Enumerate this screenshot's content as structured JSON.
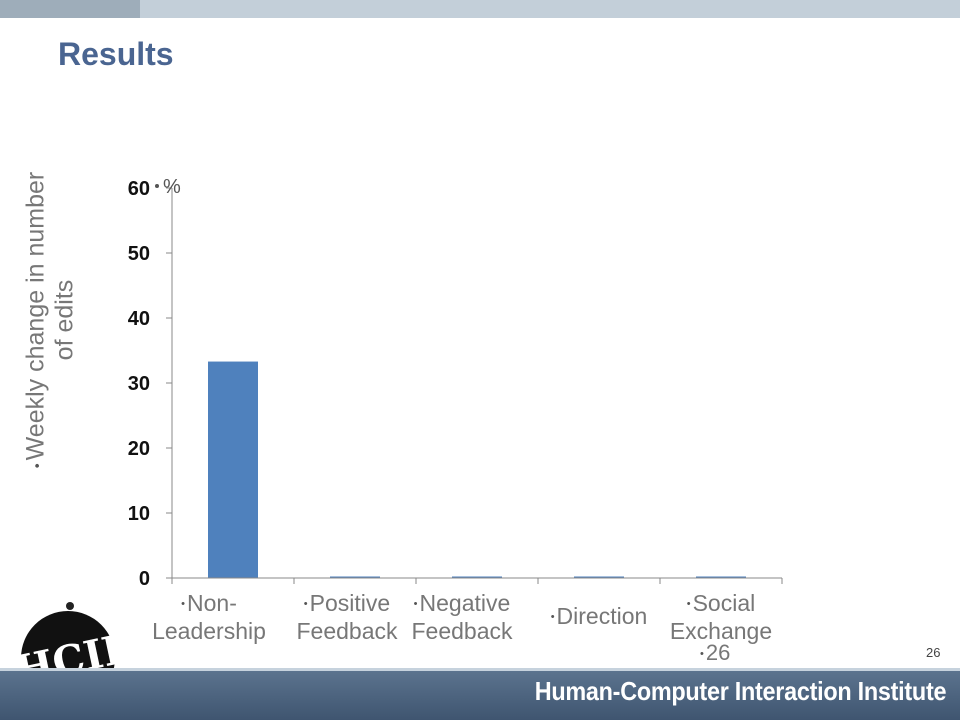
{
  "slide": {
    "title": "Results",
    "footer_number": "26",
    "page_number": "26",
    "institute": "Human-Computer Interaction Institute",
    "logo_text": "HCII"
  },
  "chart_data": {
    "type": "bar",
    "unit_label": "%",
    "ylabel": "Weekly change in number of edits",
    "categories": [
      "Non-\nLeadership",
      "Positive\nFeedback",
      "Negative\nFeedback",
      "Direction",
      "Social\nExchange"
    ],
    "values": [
      33.3,
      0.2,
      0.2,
      0.2,
      0.2
    ],
    "ylim": [
      0,
      60
    ],
    "yticks": [
      0,
      10,
      20,
      30,
      40,
      50,
      60
    ],
    "grid": false,
    "legend": "none",
    "bar_color": "#4f81bd"
  }
}
